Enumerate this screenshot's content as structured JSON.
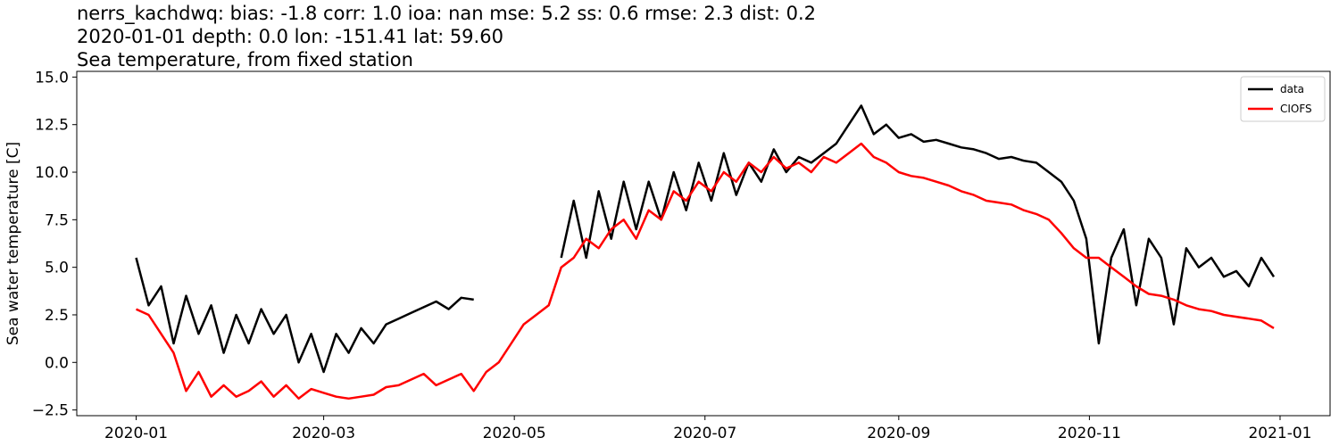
{
  "chart_data": {
    "type": "line",
    "title_lines": [
      "nerrs_kachdwq: bias: -1.8  corr: 1.0  ioa: nan  mse: 5.2  ss: 0.6  rmse: 2.3  dist: 0.2",
      "2020-01-01 depth: 0.0 lon: -151.41 lat: 59.60",
      "Sea temperature, from fixed station"
    ],
    "y_label": "Sea water temperature [C]",
    "x": [
      "2020-01-01",
      "2020-01-05",
      "2020-01-09",
      "2020-01-13",
      "2020-01-17",
      "2020-01-21",
      "2020-01-25",
      "2020-01-29",
      "2020-02-02",
      "2020-02-06",
      "2020-02-10",
      "2020-02-14",
      "2020-02-18",
      "2020-02-22",
      "2020-02-26",
      "2020-03-01",
      "2020-03-05",
      "2020-03-09",
      "2020-03-13",
      "2020-03-17",
      "2020-03-21",
      "2020-03-25",
      "2020-03-29",
      "2020-04-02",
      "2020-04-06",
      "2020-04-10",
      "2020-04-14",
      "2020-04-18",
      "2020-04-22",
      "2020-04-26",
      "2020-04-30",
      "2020-05-04",
      "2020-05-08",
      "2020-05-12",
      "2020-05-16",
      "2020-05-20",
      "2020-05-24",
      "2020-05-28",
      "2020-06-01",
      "2020-06-05",
      "2020-06-09",
      "2020-06-13",
      "2020-06-17",
      "2020-06-21",
      "2020-06-25",
      "2020-06-29",
      "2020-07-03",
      "2020-07-07",
      "2020-07-11",
      "2020-07-15",
      "2020-07-19",
      "2020-07-23",
      "2020-07-27",
      "2020-07-31",
      "2020-08-04",
      "2020-08-08",
      "2020-08-12",
      "2020-08-16",
      "2020-08-20",
      "2020-08-24",
      "2020-08-28",
      "2020-09-01",
      "2020-09-05",
      "2020-09-09",
      "2020-09-13",
      "2020-09-17",
      "2020-09-21",
      "2020-09-25",
      "2020-09-29",
      "2020-10-03",
      "2020-10-07",
      "2020-10-11",
      "2020-10-15",
      "2020-10-19",
      "2020-10-23",
      "2020-10-27",
      "2020-10-31",
      "2020-11-04",
      "2020-11-08",
      "2020-11-12",
      "2020-11-16",
      "2020-11-20",
      "2020-11-24",
      "2020-11-28",
      "2020-12-02",
      "2020-12-06",
      "2020-12-10",
      "2020-12-14",
      "2020-12-18",
      "2020-12-22",
      "2020-12-26",
      "2020-12-30"
    ],
    "series": [
      {
        "name": "data",
        "color": "#000000",
        "values": [
          5.5,
          3.0,
          4.0,
          1.0,
          3.5,
          1.5,
          3.0,
          0.5,
          2.5,
          1.0,
          2.8,
          1.5,
          2.5,
          0.0,
          1.5,
          -0.5,
          1.5,
          0.5,
          1.8,
          1.0,
          2.0,
          2.3,
          2.6,
          2.9,
          3.2,
          2.8,
          3.4,
          3.3,
          null,
          null,
          null,
          null,
          null,
          null,
          5.5,
          8.5,
          5.5,
          9.0,
          6.5,
          9.5,
          7.0,
          9.5,
          7.5,
          10.0,
          8.0,
          10.5,
          8.5,
          11.0,
          8.8,
          10.5,
          9.5,
          11.2,
          10.0,
          10.8,
          10.5,
          11.0,
          11.5,
          12.5,
          13.5,
          12.0,
          12.5,
          11.8,
          12.0,
          11.6,
          11.7,
          11.5,
          11.3,
          11.2,
          11.0,
          10.7,
          10.8,
          10.6,
          10.5,
          10.0,
          9.5,
          8.5,
          6.5,
          1.0,
          5.5,
          7.0,
          3.0,
          6.5,
          5.5,
          2.0,
          6.0,
          5.0,
          5.5,
          4.5,
          4.8,
          4.0,
          5.5,
          4.5
        ]
      },
      {
        "name": "CIOFS",
        "color": "#ff0000",
        "values": [
          2.8,
          2.5,
          1.5,
          0.5,
          -1.5,
          -0.5,
          -1.8,
          -1.2,
          -1.8,
          -1.5,
          -1.0,
          -1.8,
          -1.2,
          -1.9,
          -1.4,
          -1.6,
          -1.8,
          -1.9,
          -1.8,
          -1.7,
          -1.3,
          -1.2,
          -0.9,
          -0.6,
          -1.2,
          -0.9,
          -0.6,
          -1.5,
          -0.5,
          0.0,
          1.0,
          2.0,
          2.5,
          3.0,
          5.0,
          5.5,
          6.5,
          6.0,
          7.0,
          7.5,
          6.5,
          8.0,
          7.5,
          9.0,
          8.5,
          9.5,
          9.0,
          10.0,
          9.5,
          10.5,
          10.0,
          10.8,
          10.2,
          10.5,
          10.0,
          10.8,
          10.5,
          11.0,
          11.5,
          10.8,
          10.5,
          10.0,
          9.8,
          9.7,
          9.5,
          9.3,
          9.0,
          8.8,
          8.5,
          8.4,
          8.3,
          8.0,
          7.8,
          7.5,
          6.8,
          6.0,
          5.5,
          5.5,
          5.0,
          4.5,
          4.0,
          3.6,
          3.5,
          3.3,
          3.0,
          2.8,
          2.7,
          2.5,
          2.4,
          2.3,
          2.2,
          1.8
        ]
      }
    ],
    "xlim": [
      "2019-12-13",
      "2021-01-17"
    ],
    "xticks": [
      {
        "value": "2020-01-01",
        "label": "2020-01"
      },
      {
        "value": "2020-03-01",
        "label": "2020-03"
      },
      {
        "value": "2020-05-01",
        "label": "2020-05"
      },
      {
        "value": "2020-07-01",
        "label": "2020-07"
      },
      {
        "value": "2020-09-01",
        "label": "2020-09"
      },
      {
        "value": "2020-11-01",
        "label": "2020-11"
      },
      {
        "value": "2021-01-01",
        "label": "2021-01"
      }
    ],
    "ylim": [
      -2.8,
      15.3
    ],
    "yticks": [
      {
        "value": -2.5,
        "label": "−2.5"
      },
      {
        "value": 0,
        "label": "0.0"
      },
      {
        "value": 2.5,
        "label": "2.5"
      },
      {
        "value": 5,
        "label": "5.0"
      },
      {
        "value": 7.5,
        "label": "7.5"
      },
      {
        "value": 10,
        "label": "10.0"
      },
      {
        "value": 12.5,
        "label": "12.5"
      },
      {
        "value": 15,
        "label": "15.0"
      }
    ],
    "legend": "upper right",
    "grid": false
  }
}
